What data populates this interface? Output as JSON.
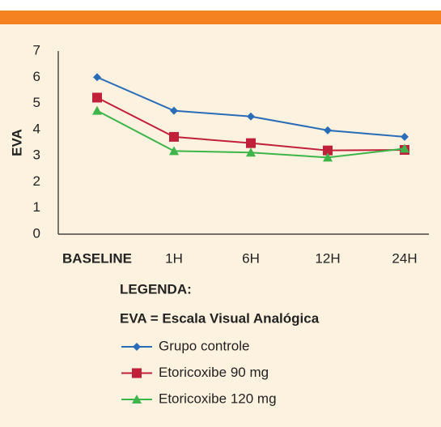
{
  "chart_data": {
    "type": "line",
    "y_label": "EVA",
    "categories": [
      "BASELINE",
      "1H",
      "6H",
      "12H",
      "24H"
    ],
    "series": [
      {
        "name": "Grupo controle",
        "color": "#2b6cb8",
        "marker": "diamond",
        "values": [
          6,
          4.72,
          4.5,
          3.97,
          3.72
        ]
      },
      {
        "name": "Etoricoxibe 90 mg",
        "color": "#c1203b",
        "marker": "square",
        "values": [
          5.22,
          3.72,
          3.48,
          3.2,
          3.22
        ]
      },
      {
        "name": "Etoricoxibe 120 mg",
        "color": "#3db54a",
        "marker": "triangle",
        "values": [
          4.72,
          3.18,
          3.12,
          2.93,
          3.27
        ]
      }
    ],
    "ylim": [
      0,
      7
    ],
    "yticks": [
      0,
      1,
      2,
      3,
      4,
      5,
      6,
      7
    ],
    "grid": false,
    "legend_title": "LEGENDA:",
    "legend_note": "EVA = Escala Visual Analógica"
  }
}
